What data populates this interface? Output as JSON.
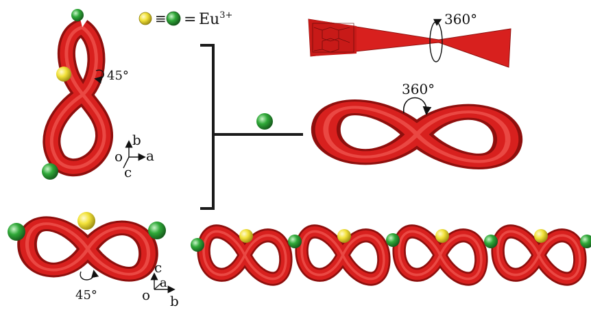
{
  "legend": {
    "equiv_symbol": "≡",
    "equals_symbol": "=",
    "ion": "Eu",
    "charge": "3+"
  },
  "annotations": {
    "rotation_small_top": "45°",
    "rotation_small_bottom": "45°",
    "rotation_ribbon": "360°",
    "rotation_loop": "360°"
  },
  "axes": {
    "top": {
      "origin": "o",
      "a": "a",
      "b": "b",
      "c": "c"
    },
    "bottom": {
      "origin": "o",
      "a": "a",
      "b": "b",
      "c": "c"
    }
  },
  "colors": {
    "ribbon": "#d8201e",
    "ribbon_dark": "#8e0f0d",
    "ribbon_light": "#f25a52",
    "sphere_yellow": "#f2e23a",
    "sphere_green": "#2fa838",
    "bracket": "#1a1a1a"
  },
  "icons": {
    "yellow_sphere": "yellow-eu-sphere-icon",
    "green_sphere": "green-eu-sphere-icon",
    "rotation_arrow": "rotation-arrow-icon"
  }
}
